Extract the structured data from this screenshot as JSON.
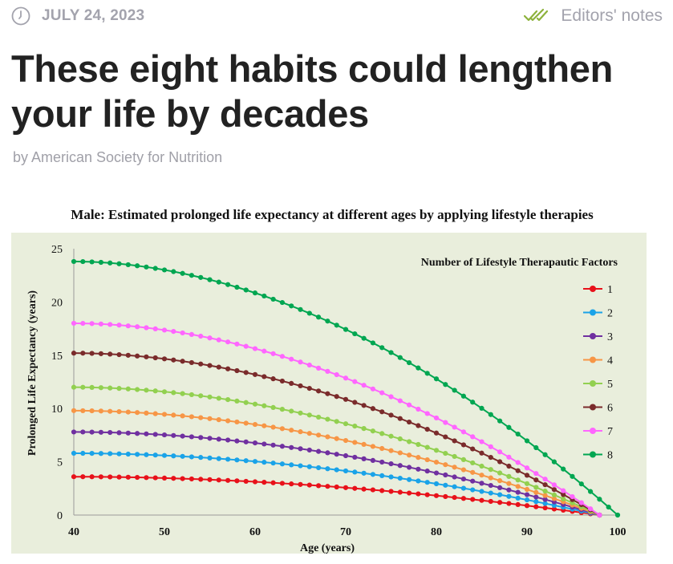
{
  "article": {
    "date": "JULY 24, 2023",
    "editors_notes": "Editors' notes",
    "title": "These eight habits could lengthen your life by decades",
    "byline": "by American Society for Nutrition"
  },
  "icons": {
    "date": "clock-icon",
    "notes": "double-check-icon"
  },
  "colors": {
    "meta_gray": "#a3a3ad",
    "check_green": "#8db23c",
    "chart_bg": "#e9eedc"
  },
  "chart_data": {
    "type": "line",
    "title": "Male: Estimated prolonged life expectancy at different ages by applying lifestyle therapies",
    "xlabel": "Age (years)",
    "ylabel": "Prolonged Life Expectancy (years)",
    "xlim": [
      40,
      100
    ],
    "ylim": [
      0,
      25
    ],
    "xticks": [
      40,
      50,
      60,
      70,
      80,
      90,
      100
    ],
    "yticks": [
      0,
      5,
      10,
      15,
      20,
      25
    ],
    "legend_title": "Number of Lifestyle Therapautic Factors",
    "legend_position": "top-right",
    "grid": false,
    "end_age": 98,
    "shape_exponent": 1.9,
    "series": [
      {
        "name": "1",
        "start": 3.6,
        "color": "#e8111a"
      },
      {
        "name": "2",
        "start": 5.8,
        "color": "#1aa3e8"
      },
      {
        "name": "3",
        "start": 7.8,
        "color": "#7030a0"
      },
      {
        "name": "4",
        "start": 9.8,
        "color": "#f79646"
      },
      {
        "name": "5",
        "start": 12.0,
        "color": "#92d050"
      },
      {
        "name": "6",
        "start": 15.2,
        "color": "#7a2b2b"
      },
      {
        "name": "7",
        "start": 18.0,
        "color": "#ff66ff"
      },
      {
        "name": "8",
        "start": 23.8,
        "color": "#00a651",
        "end_age": 100
      }
    ]
  }
}
